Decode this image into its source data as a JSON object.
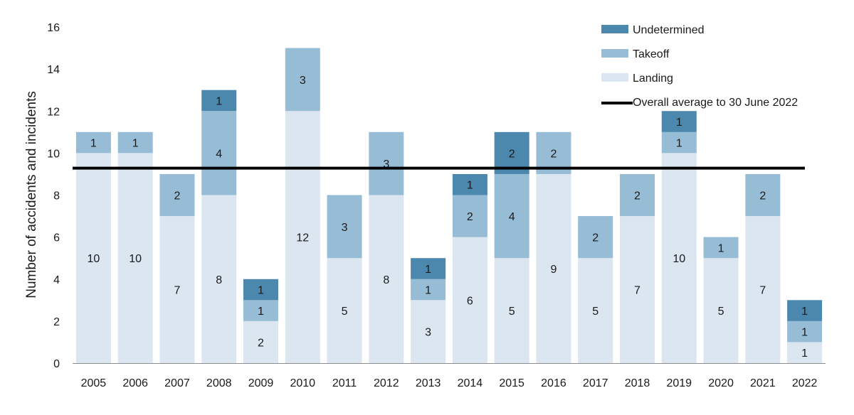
{
  "chart_data": {
    "type": "bar",
    "stacked": true,
    "categories": [
      "2005",
      "2006",
      "2007",
      "2008",
      "2009",
      "2010",
      "2011",
      "2012",
      "2013",
      "2014",
      "2015",
      "2016",
      "2017",
      "2018",
      "2019",
      "2020",
      "2021",
      "2022"
    ],
    "series": [
      {
        "name": "Landing",
        "values": [
          10,
          10,
          7,
          8,
          2,
          12,
          5,
          8,
          3,
          6,
          5,
          9,
          5,
          7,
          10,
          5,
          7,
          1
        ],
        "color": "#dbe6f1"
      },
      {
        "name": "Takeoff",
        "values": [
          1,
          1,
          2,
          4,
          1,
          3,
          3,
          3,
          1,
          2,
          4,
          2,
          2,
          2,
          1,
          1,
          2,
          1
        ],
        "color": "#97bcd6"
      },
      {
        "name": "Undetermined",
        "values": [
          0,
          0,
          0,
          1,
          1,
          0,
          0,
          0,
          1,
          1,
          2,
          0,
          0,
          0,
          1,
          0,
          0,
          1
        ],
        "color": "#4c87ad"
      }
    ],
    "reference_line": {
      "name": "Overall average to 30 June 2022",
      "value": 9.28,
      "color": "#000000"
    },
    "legend_order": [
      "Undetermined",
      "Takeoff",
      "Landing",
      "Overall average to 30 June 2022"
    ],
    "ylabel": "Number of accidents and incidents",
    "xlabel": "",
    "ylim": [
      0,
      16
    ],
    "yticks": [
      0,
      2,
      4,
      6,
      8,
      10,
      12,
      14,
      16
    ],
    "grid": false,
    "legend_position": "top-right"
  }
}
